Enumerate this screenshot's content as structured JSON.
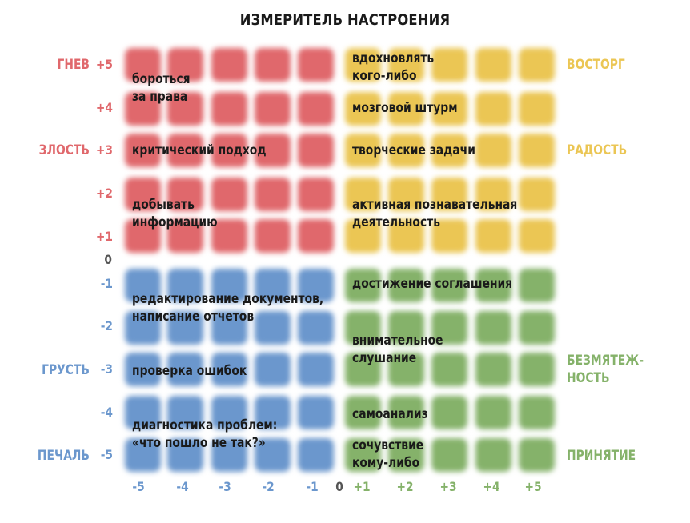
{
  "title": "ИЗМЕРИТЕЛЬ НАСТРОЕНИЯ",
  "colors": {
    "red": "#e0686c",
    "yellow": "#ebc654",
    "blue": "#6b97cd",
    "green": "#85b26a",
    "text": "#1a1a1a"
  },
  "y_ticks": [
    "+5",
    "+4",
    "+3",
    "+2",
    "+1",
    "0",
    "-1",
    "-2",
    "-3",
    "-4",
    "-5"
  ],
  "x_ticks": [
    "-5",
    "-4",
    "-3",
    "-2",
    "-1",
    "0",
    "+1",
    "+2",
    "+3",
    "+4",
    "+5"
  ],
  "emotions": {
    "left": {
      "plus5": "ГНЕВ",
      "plus3": "ЗЛОСТЬ",
      "minus3": "ГРУСТЬ",
      "minus5": "ПЕЧАЛЬ"
    },
    "right": {
      "plus5": "ВОСТОРГ",
      "plus3": "РАДОСТЬ",
      "minus3": "БЕЗМЯТЕЖ-\nНОСТЬ",
      "minus5": "ПРИНЯТИЕ"
    }
  },
  "activities": {
    "red": {
      "a1": "бороться\nза права",
      "a2": "критический подход",
      "a3": "добывать\nинформацию"
    },
    "yellow": {
      "a1": "вдохновлять\nкого-либо",
      "a2": "мозговой штурм",
      "a3": "творческие задачи",
      "a4": "активная познавательная\nдеятельность"
    },
    "blue": {
      "a1": "редактирование документов,\nнаписание отчетов",
      "a2": "проверка ошибок",
      "a3": "диагностика проблем:\n«что пошло не так?»"
    },
    "green": {
      "a1": "достижение соглашения",
      "a2": "внимательное\nслушание",
      "a3": "самоанализ",
      "a4": "сочувствие\nкому-либо"
    }
  }
}
